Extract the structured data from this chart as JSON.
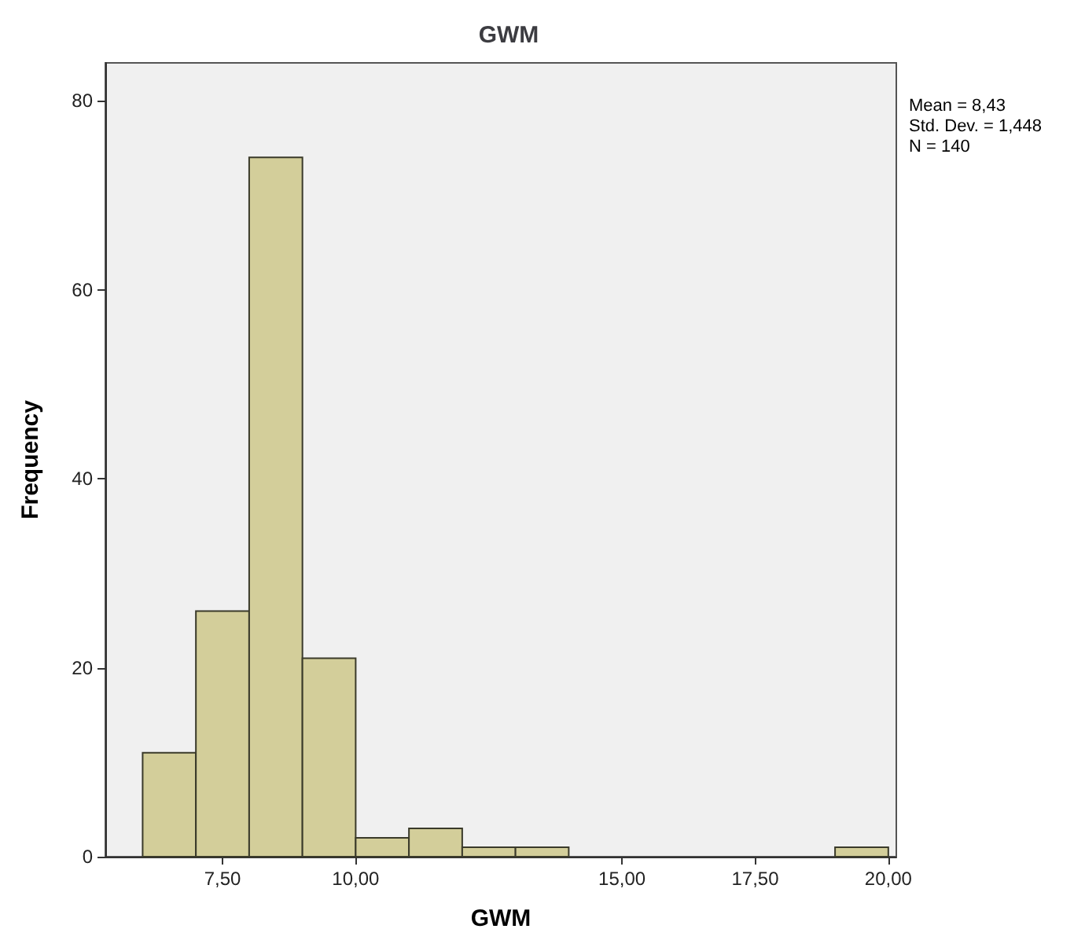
{
  "chart_data": {
    "type": "histogram",
    "title": "GWM",
    "xlabel": "GWM",
    "ylabel": "Frequency",
    "bins": [
      6,
      7,
      8,
      9,
      10,
      11,
      12,
      13,
      14,
      15,
      16,
      17,
      18,
      19,
      20
    ],
    "values": [
      11,
      26,
      74,
      21,
      2,
      3,
      1,
      1,
      0,
      0,
      0,
      0,
      0,
      1
    ],
    "color": "#d3ce9a",
    "xlim": [
      5.3,
      20.15
    ],
    "xticks": [
      {
        "value": 7.5,
        "label": "7,50"
      },
      {
        "value": 10,
        "label": "10,00"
      },
      {
        "value": 15,
        "label": "15,00"
      },
      {
        "value": 17.5,
        "label": "17,50"
      },
      {
        "value": 20,
        "label": "20,00"
      }
    ],
    "ylim": [
      0,
      84
    ],
    "yticks": [
      0,
      20,
      40,
      60,
      80
    ],
    "grid": false,
    "annotations": [
      "Mean = 8,43",
      "Std. Dev. = 1,448",
      "N = 140"
    ]
  }
}
